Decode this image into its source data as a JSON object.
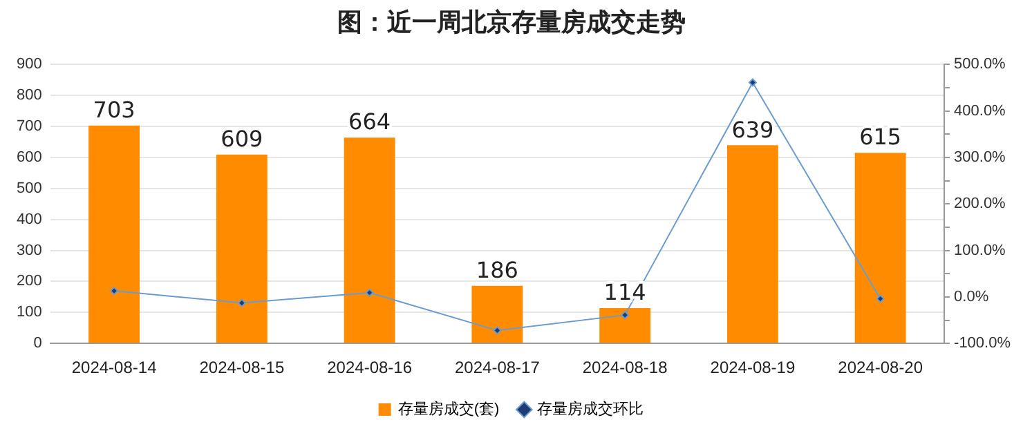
{
  "chart_data": {
    "type": "bar",
    "title": "图：近一周北京存量房成交走势",
    "categories": [
      "2024-08-14",
      "2024-08-15",
      "2024-08-16",
      "2024-08-17",
      "2024-08-18",
      "2024-08-19",
      "2024-08-20"
    ],
    "series": [
      {
        "name": "存量房成交(套)",
        "color": "#ff8c00",
        "values": [
          703,
          609,
          664,
          186,
          114,
          639,
          615
        ]
      },
      {
        "name": "存量房成交环比",
        "type": "line",
        "axis": "y2",
        "color": "#6a9bd1",
        "values": [
          13,
          -13,
          9,
          -72,
          -39,
          461,
          -4
        ]
      }
    ],
    "ylim": [
      0,
      900
    ],
    "yticks": [
      0,
      100,
      200,
      300,
      400,
      500,
      600,
      700,
      800,
      900
    ],
    "y2lim": [
      -100,
      500
    ],
    "y2ticks": [
      {
        "value": -100,
        "label": "-100.0%"
      },
      {
        "value": -50,
        "label": null
      },
      {
        "value": 0,
        "label": "0.0%"
      },
      {
        "value": 50,
        "label": null
      },
      {
        "value": 100,
        "label": "100.0%"
      },
      {
        "value": 150,
        "label": null
      },
      {
        "value": 200,
        "label": "200.0%"
      },
      {
        "value": 250,
        "label": null
      },
      {
        "value": 300,
        "label": "300.0%"
      },
      {
        "value": 350,
        "label": null
      },
      {
        "value": 400,
        "label": "400.0%"
      },
      {
        "value": 450,
        "label": null
      },
      {
        "value": 500,
        "label": "500.0%"
      }
    ],
    "value_labels": [
      "703",
      "609",
      "664",
      "186",
      "114",
      "639",
      "615"
    ],
    "grid": "y",
    "legend": "bottom",
    "marker": "diamond",
    "line_style": "solid"
  }
}
